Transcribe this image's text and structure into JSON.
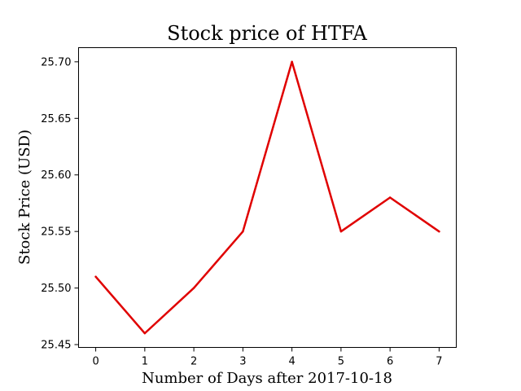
{
  "chart_data": {
    "type": "line",
    "title": "Stock price of HTFA",
    "xlabel": "Number of Days after 2017-10-18",
    "ylabel": "Stock Price (USD)",
    "x": [
      0,
      1,
      2,
      3,
      4,
      5,
      6,
      7
    ],
    "series": [
      {
        "values": [
          25.51,
          25.46,
          25.5,
          25.55,
          25.7,
          25.55,
          25.58,
          25.55
        ],
        "color": "#e00000"
      }
    ],
    "xlim": [
      -0.35,
      7.35
    ],
    "ylim": [
      25.4475,
      25.7125
    ],
    "xticks": [
      "0",
      "1",
      "2",
      "3",
      "4",
      "5",
      "6",
      "7"
    ],
    "yticks": [
      "25.45",
      "25.50",
      "25.55",
      "25.60",
      "25.65",
      "25.70"
    ],
    "grid": false,
    "legend": "none"
  }
}
